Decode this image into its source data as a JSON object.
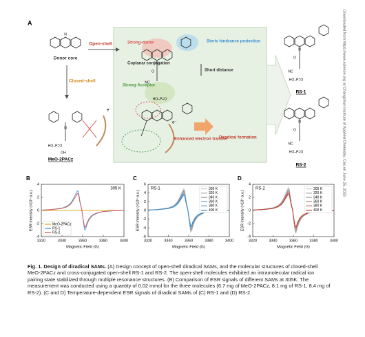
{
  "figure_a": {
    "panel": "A",
    "donor_core": "Donor core",
    "open_shell": "Open-shell",
    "closed_shell": "Closed-shell",
    "meo": "MeO-2PACz",
    "strong_donor": "Strong-donor",
    "steric": "Steric hindrance protection",
    "coplanar": "Coplanar conjugation",
    "short_distance": "Short distance",
    "strong_acceptor": "Strong-Acceptor",
    "enhanced": "Enhanced electron transfer",
    "diradical": "Diradical formation",
    "electron": [
      "e⁻",
      "e⁻"
    ],
    "rs1": "RS-1",
    "rs2": "RS-2",
    "atoms": [
      "N",
      "N",
      "HO–P=O",
      "OH",
      "N",
      "O",
      "NC",
      "HO–P=O",
      "N",
      "O",
      "NC",
      "HO–P=O",
      "N",
      "O",
      "NC",
      "HO–P=O"
    ]
  },
  "chart_data": [
    {
      "type": "line",
      "panel": "B",
      "annotation": "305 K",
      "x_label": "Magnetic Field (G)",
      "y_label": "ESR intensity (×10⁴ a.u.)",
      "xlim": [
        3320,
        3400
      ],
      "xticks": [
        3320,
        3340,
        3360,
        3380,
        3400
      ],
      "ylim": [
        -4,
        4
      ],
      "yticks": [
        -4,
        -2,
        0,
        2,
        4
      ],
      "legend": "lower left",
      "x": [
        3320,
        3330,
        3340,
        3345,
        3348,
        3350,
        3352,
        3354,
        3355,
        3356,
        3357,
        3358,
        3359,
        3360,
        3361,
        3362,
        3363,
        3364,
        3366,
        3368,
        3370,
        3375,
        3380,
        3390,
        3400
      ],
      "series": [
        {
          "name": "MeO-2PACz",
          "color": "#e0a820",
          "values": [
            0,
            0,
            0,
            0,
            0,
            0,
            0,
            0,
            0,
            0,
            0,
            0,
            0,
            0,
            0,
            0,
            0,
            0,
            0,
            0,
            0,
            0,
            0,
            0,
            0
          ]
        },
        {
          "name": "RS-1",
          "color": "#4a9ad4",
          "values": [
            0.06,
            0.15,
            0.36,
            0.66,
            1.05,
            1.5,
            2.1,
            2.7,
            3.0,
            2.85,
            1.8,
            0.9,
            0.3,
            -0.9,
            -2.1,
            -3.0,
            -2.85,
            -2.25,
            -1.5,
            -1.05,
            -0.75,
            -0.36,
            -0.18,
            -0.06,
            0
          ]
        },
        {
          "name": "RS-2",
          "color": "#d9534f",
          "values": [
            0.05,
            0.13,
            0.31,
            0.57,
            0.91,
            1.3,
            1.82,
            2.34,
            2.6,
            2.47,
            1.56,
            0.78,
            0.26,
            -0.78,
            -1.82,
            -2.6,
            -2.47,
            -1.95,
            -1.3,
            -0.91,
            -0.65,
            -0.31,
            -0.16,
            -0.05,
            0
          ]
        }
      ]
    },
    {
      "type": "line",
      "panel": "C",
      "annotation": "RS-1",
      "x_label": "Magnetic Field (G)",
      "y_label": "ESR intensity (×10⁴ a.u.)",
      "xlim": [
        3320,
        3400
      ],
      "xticks": [
        3320,
        3340,
        3360,
        3380,
        3400
      ],
      "ylim": [
        -6,
        6
      ],
      "yticks": [
        -6,
        -4,
        -2,
        0,
        2,
        4,
        6
      ],
      "legend": "upper right",
      "x": [
        3320,
        3330,
        3340,
        3345,
        3348,
        3350,
        3352,
        3354,
        3355,
        3356,
        3357,
        3358,
        3359,
        3360,
        3361,
        3362,
        3363,
        3364,
        3366,
        3368,
        3370,
        3375,
        3380,
        3390,
        3400
      ],
      "series": [
        {
          "name": "305 K",
          "color": "#c8c8c8",
          "values": [
            0.1,
            0.25,
            0.6,
            1.1,
            1.75,
            2.5,
            3.5,
            4.5,
            5.0,
            4.75,
            3.0,
            1.5,
            0.5,
            -1.5,
            -3.5,
            -5.0,
            -4.75,
            -3.75,
            -2.5,
            -1.75,
            -1.25,
            -0.6,
            -0.3,
            -0.1,
            0
          ]
        },
        {
          "name": "320 K",
          "color": "#aaaaaa",
          "values": [
            0.09,
            0.24,
            0.56,
            1.03,
            1.65,
            2.35,
            3.29,
            4.23,
            4.7,
            4.47,
            2.82,
            1.41,
            0.47,
            -1.41,
            -3.29,
            -4.7,
            -4.47,
            -3.53,
            -2.35,
            -1.65,
            -1.18,
            -0.56,
            -0.28,
            -0.09,
            0
          ]
        },
        {
          "name": "340 K",
          "color": "#8c8c8c",
          "values": [
            0.09,
            0.22,
            0.53,
            0.97,
            1.54,
            2.2,
            3.08,
            3.96,
            4.4,
            4.18,
            2.64,
            1.32,
            0.44,
            -1.32,
            -3.08,
            -4.4,
            -4.18,
            -3.3,
            -2.2,
            -1.54,
            -1.1,
            -0.53,
            -0.26,
            -0.09,
            0
          ]
        },
        {
          "name": "360 K",
          "color": "#7f9cb3",
          "values": [
            0.08,
            0.21,
            0.49,
            0.9,
            1.44,
            2.05,
            2.87,
            3.69,
            4.1,
            3.9,
            2.46,
            1.23,
            0.41,
            -1.23,
            -2.87,
            -4.1,
            -3.9,
            -3.08,
            -2.05,
            -1.44,
            -1.03,
            -0.49,
            -0.25,
            -0.08,
            0
          ]
        },
        {
          "name": "380 K",
          "color": "#5a9ac8",
          "values": [
            0.08,
            0.19,
            0.46,
            0.84,
            1.33,
            1.9,
            2.66,
            3.42,
            3.8,
            3.61,
            2.28,
            1.14,
            0.38,
            -1.14,
            -2.66,
            -3.8,
            -3.61,
            -2.85,
            -1.9,
            -1.33,
            -0.95,
            -0.46,
            -0.23,
            -0.08,
            0
          ]
        },
        {
          "name": "400 K",
          "color": "#2f8ad0",
          "values": [
            0.07,
            0.18,
            0.42,
            0.77,
            1.23,
            1.75,
            2.45,
            3.15,
            3.5,
            3.33,
            2.1,
            1.05,
            0.35,
            -1.05,
            -2.45,
            -3.5,
            -3.33,
            -2.63,
            -1.75,
            -1.23,
            -0.88,
            -0.42,
            -0.21,
            -0.07,
            0
          ]
        }
      ]
    },
    {
      "type": "line",
      "panel": "D",
      "annotation": "RS-2",
      "x_label": "Magnetic Field (G)",
      "y_label": "ESR intensity (×10⁴ a.u.)",
      "xlim": [
        3320,
        3400
      ],
      "xticks": [
        3320,
        3340,
        3360,
        3380,
        3400
      ],
      "ylim": [
        -4,
        4
      ],
      "yticks": [
        -4,
        -2,
        0,
        2,
        4
      ],
      "legend": "upper right",
      "x": [
        3320,
        3330,
        3340,
        3345,
        3348,
        3350,
        3352,
        3354,
        3355,
        3356,
        3357,
        3358,
        3359,
        3360,
        3361,
        3362,
        3363,
        3364,
        3366,
        3368,
        3370,
        3375,
        3380,
        3390,
        3400
      ],
      "series": [
        {
          "name": "305 K",
          "color": "#c8c8c8",
          "values": [
            0.07,
            0.18,
            0.42,
            0.77,
            1.23,
            1.75,
            2.45,
            3.15,
            3.5,
            3.33,
            2.1,
            1.05,
            0.35,
            -1.05,
            -2.45,
            -3.5,
            -3.33,
            -2.63,
            -1.75,
            -1.23,
            -0.88,
            -0.42,
            -0.21,
            -0.07,
            0
          ]
        },
        {
          "name": "320 K",
          "color": "#aaaaaa",
          "values": [
            0.07,
            0.17,
            0.4,
            0.73,
            1.16,
            1.65,
            2.31,
            2.97,
            3.3,
            3.14,
            1.98,
            0.99,
            0.33,
            -0.99,
            -2.31,
            -3.3,
            -3.14,
            -2.48,
            -1.65,
            -1.16,
            -0.83,
            -0.4,
            -0.2,
            -0.07,
            0
          ]
        },
        {
          "name": "340 K",
          "color": "#999999",
          "values": [
            0.06,
            0.16,
            0.37,
            0.68,
            1.09,
            1.55,
            2.17,
            2.79,
            3.1,
            2.95,
            1.86,
            0.93,
            0.31,
            -0.93,
            -2.17,
            -3.1,
            -2.95,
            -2.33,
            -1.55,
            -1.09,
            -0.78,
            -0.37,
            -0.19,
            -0.06,
            0
          ]
        },
        {
          "name": "360 K",
          "color": "#b07f78",
          "values": [
            0.06,
            0.15,
            0.35,
            0.64,
            1.02,
            1.45,
            2.03,
            2.61,
            2.9,
            2.76,
            1.74,
            0.87,
            0.29,
            -0.87,
            -2.03,
            -2.9,
            -2.76,
            -2.18,
            -1.45,
            -1.02,
            -0.73,
            -0.35,
            -0.17,
            -0.06,
            0
          ]
        },
        {
          "name": "380 K",
          "color": "#c0605a",
          "values": [
            0.05,
            0.14,
            0.32,
            0.59,
            0.95,
            1.35,
            1.89,
            2.43,
            2.7,
            2.57,
            1.62,
            0.81,
            0.27,
            -0.81,
            -1.89,
            -2.7,
            -2.57,
            -2.03,
            -1.35,
            -0.95,
            -0.68,
            -0.32,
            -0.16,
            -0.05,
            0
          ]
        },
        {
          "name": "400 K",
          "color": "#c0392b",
          "values": [
            0.05,
            0.13,
            0.3,
            0.55,
            0.88,
            1.25,
            1.75,
            2.25,
            2.5,
            2.38,
            1.5,
            0.75,
            0.25,
            -0.75,
            -1.75,
            -2.5,
            -2.38,
            -1.88,
            -1.25,
            -0.88,
            -0.63,
            -0.3,
            -0.15,
            -0.05,
            0
          ]
        }
      ]
    }
  ],
  "caption": {
    "title": "Fig. 1. Design of diradical SAMs.",
    "body": "(A) Design concept of open-shell diradical SAMs, and the molecular structures of closed-shell MeO-2PACz and cross-conjugated open-shell RS-1 and RS-2. The open-shell molecules exhibited an intramolecular radical ion pairing state stabilized through multiple resonance structures. (B) Comparison of ESR signals of different SAMs at 305K. The measurement was conducted using a quantity of 0.02 mmol for the three molecules (6.7 mg of MeO-2PACz, 8.1 mg of RS-1, 8.4 mg of RS-2). (C and D) Temperature-dependent ESR signals of diradical SAMs of (C) RS-1 and (D) RS-2."
  },
  "side_note": "Downloaded from https://www.science.org at Changchun Institute of Applied Chemistry, Cas on June 25, 2025"
}
